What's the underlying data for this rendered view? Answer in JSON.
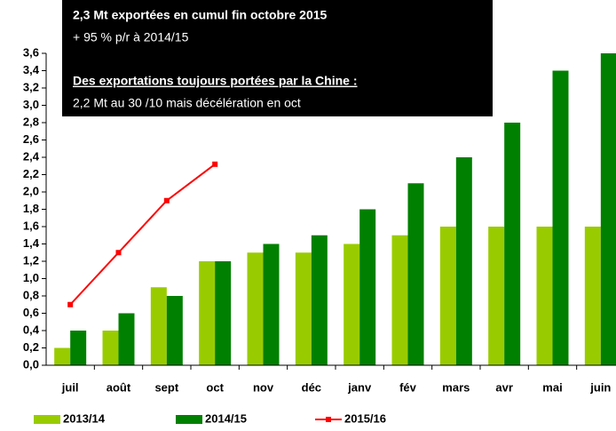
{
  "chart_data": {
    "type": "bar",
    "annotations": [
      {
        "text": "2,3 Mt exportées en cumul fin octobre 2015",
        "bold": true,
        "underline": false
      },
      {
        "text": "+ 95 % p/r à 2014/15",
        "bold": false,
        "underline": false
      },
      {
        "text": "Des exportations toujours portées par la Chine :",
        "bold": true,
        "underline": true
      },
      {
        "text": "2,2 Mt au 30 /10 mais décélération en oct",
        "bold": false,
        "underline": false
      }
    ],
    "categories": [
      "juil",
      "août",
      "sept",
      "oct",
      "nov",
      "déc",
      "janv",
      "fév",
      "mars",
      "avr",
      "mai",
      "juin"
    ],
    "series": [
      {
        "name": "2013/14",
        "type": "bar",
        "color": "#99cc00",
        "values": [
          0.2,
          0.4,
          0.9,
          1.2,
          1.3,
          1.3,
          1.4,
          1.5,
          1.6,
          1.6,
          1.6,
          1.6
        ]
      },
      {
        "name": "2014/15",
        "type": "bar",
        "color": "#008000",
        "values": [
          0.4,
          0.6,
          0.8,
          1.2,
          1.4,
          1.5,
          1.8,
          2.1,
          2.4,
          2.8,
          3.4,
          3.6
        ]
      },
      {
        "name": "2015/16",
        "type": "line",
        "color": "#ff0000",
        "values": [
          0.7,
          1.3,
          1.9,
          2.32,
          null,
          null,
          null,
          null,
          null,
          null,
          null,
          null
        ]
      }
    ],
    "ylim": [
      0,
      3.6
    ],
    "yticks": [
      {
        "value": 0,
        "label": "0,0"
      },
      {
        "value": 0.2,
        "label": "0,2"
      },
      {
        "value": 0.4,
        "label": "0,4"
      },
      {
        "value": 0.6,
        "label": "0,6"
      },
      {
        "value": 0.8,
        "label": "0,8"
      },
      {
        "value": 1.0,
        "label": "1,0"
      },
      {
        "value": 1.2,
        "label": "1,2"
      },
      {
        "value": 1.4,
        "label": "1,4"
      },
      {
        "value": 1.6,
        "label": "1,6"
      },
      {
        "value": 1.8,
        "label": "1,8"
      },
      {
        "value": 2.0,
        "label": "2,0"
      },
      {
        "value": 2.2,
        "label": "2,2"
      },
      {
        "value": 2.4,
        "label": "2,4"
      },
      {
        "value": 2.6,
        "label": "2,6"
      },
      {
        "value": 2.8,
        "label": "2,8"
      },
      {
        "value": 3.0,
        "label": "3,0"
      },
      {
        "value": 3.2,
        "label": "3,2"
      },
      {
        "value": 3.4,
        "label": "3,4"
      },
      {
        "value": 3.6,
        "label": "3,6"
      }
    ],
    "grid": false
  }
}
